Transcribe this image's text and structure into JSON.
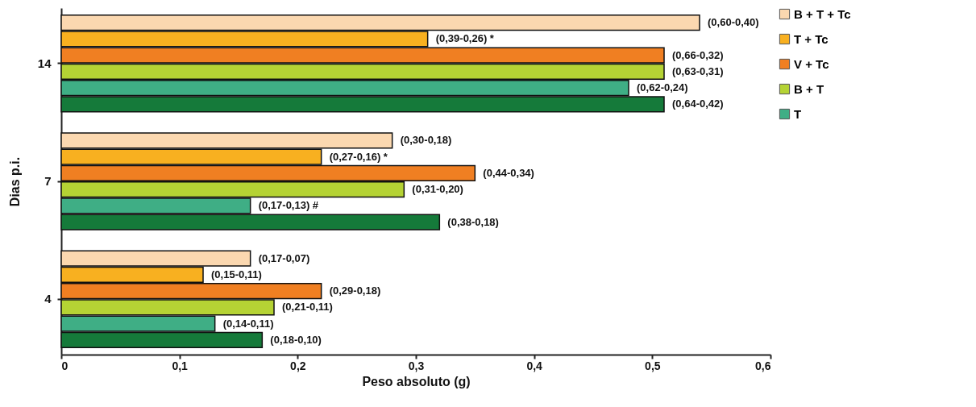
{
  "chart_data": {
    "type": "bar",
    "orientation": "horizontal",
    "xlabel": "Peso absoluto (g)",
    "ylabel": "Dias p.i.",
    "categories": [
      "14",
      "7",
      "4"
    ],
    "xlim": [
      0,
      0.6
    ],
    "xticks": [
      {
        "value": 0,
        "label": "0"
      },
      {
        "value": 0.1,
        "label": "0,1"
      },
      {
        "value": 0.2,
        "label": "0,2"
      },
      {
        "value": 0.3,
        "label": "0,3"
      },
      {
        "value": 0.4,
        "label": "0,4"
      },
      {
        "value": 0.5,
        "label": "0,5"
      },
      {
        "value": 0.6,
        "label": "0,6"
      }
    ],
    "grid": false,
    "legend": "right",
    "series": [
      {
        "name": "B + T + Tc",
        "color": "#fbd8b0",
        "values": [
          0.54,
          0.28,
          0.16
        ],
        "value_labels": [
          "(0,60-0,40)",
          "(0,30-0,18)",
          "(0,17-0,07)"
        ]
      },
      {
        "name": "T + Tc",
        "color": "#f8b020",
        "values": [
          0.31,
          0.22,
          0.12
        ],
        "value_labels": [
          "(0,39-0,26) *",
          "(0,27-0,16) *",
          "(0,15-0,11)"
        ]
      },
      {
        "name": "V + Tc",
        "color": "#f07f22",
        "values": [
          0.51,
          0.35,
          0.22
        ],
        "value_labels": [
          "(0,66-0,32)",
          "(0,44-0,34)",
          "(0,29-0,18)"
        ]
      },
      {
        "name": "B + T",
        "color": "#b5d334",
        "values": [
          0.51,
          0.29,
          0.18
        ],
        "value_labels": [
          "(0,63-0,31)",
          "(0,31-0,20)",
          "(0,21-0,11)"
        ]
      },
      {
        "name": "T",
        "color": "#3fae85",
        "values": [
          0.48,
          0.16,
          0.13
        ],
        "value_labels": [
          "(0,62-0,24)",
          "(0,17-0,13) #",
          "(0,14-0,11)"
        ]
      },
      {
        "color": "#157a3a",
        "values": [
          0.51,
          0.32,
          0.17
        ],
        "value_labels": [
          "(0,64-0,42)",
          "(0,38-0,18)",
          "(0,18-0,10)"
        ]
      }
    ]
  }
}
